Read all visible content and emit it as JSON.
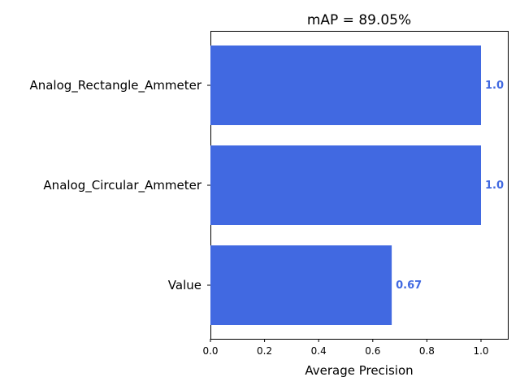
{
  "chart_data": {
    "type": "bar",
    "orientation": "horizontal",
    "title": "mAP = 89.05%",
    "xlabel": "Average Precision",
    "ylabel": "",
    "categories": [
      "Analog_Rectangle_Ammeter",
      "Analog_Circular_Ammeter",
      "Value"
    ],
    "values": [
      1.0,
      1.0,
      0.67
    ],
    "value_labels": [
      "1.0",
      "1.0",
      "0.67"
    ],
    "xlim": [
      0.0,
      1.1
    ],
    "xticks": [
      0.0,
      0.2,
      0.4,
      0.6,
      0.8,
      1.0
    ],
    "xtick_labels": [
      "0.0",
      "0.2",
      "0.4",
      "0.6",
      "0.8",
      "1.0"
    ],
    "grid": false,
    "bar_color": "#4169e1",
    "label_color": "#4169e1"
  }
}
